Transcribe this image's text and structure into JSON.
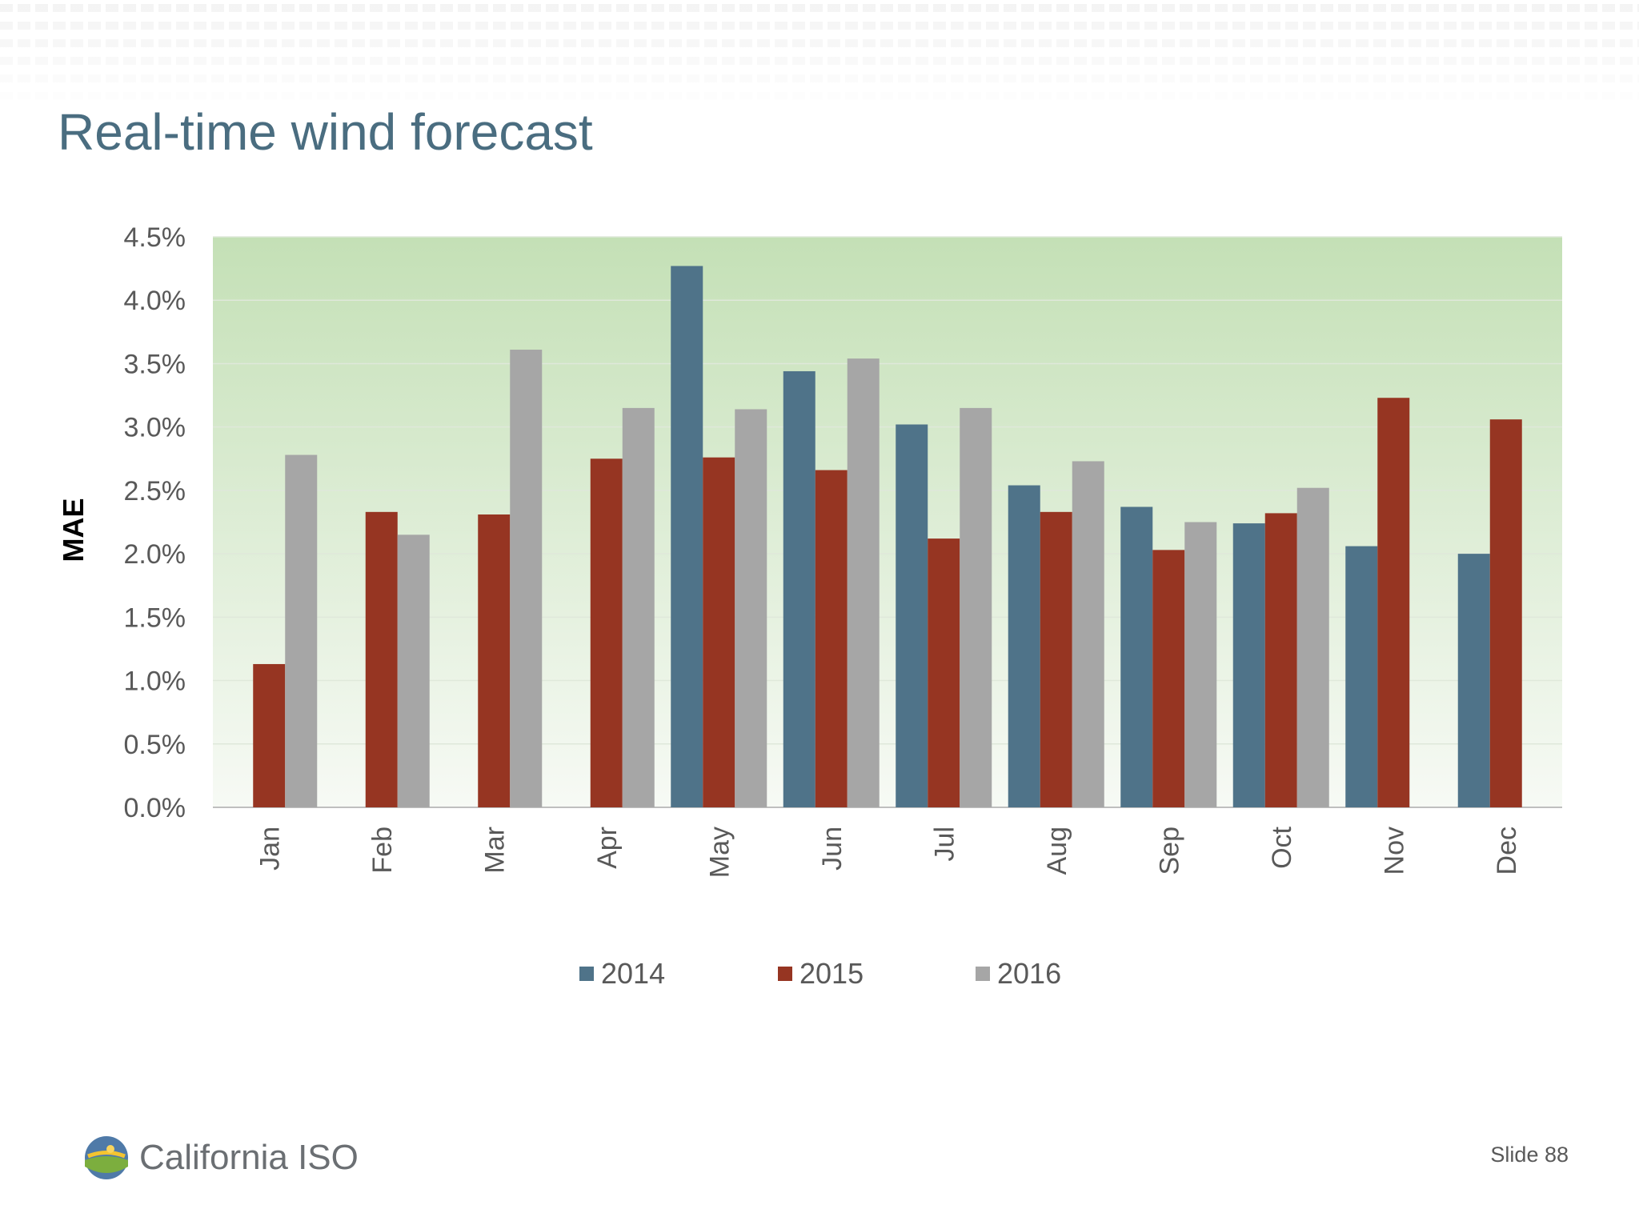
{
  "slide": {
    "title": "Real-time wind forecast",
    "slide_number": "Slide 88",
    "logo_text": "California ISO"
  },
  "colors": {
    "title": "#4a6d80",
    "series_2014": "#4f7389",
    "series_2015": "#963522",
    "series_2016": "#a6a6a6",
    "plot_top": "#c4e0b6",
    "plot_bottom": "#f7faf5"
  },
  "chart_data": {
    "type": "bar",
    "title": "",
    "xlabel": "",
    "ylabel": "MAE",
    "ylim": [
      0,
      4.5
    ],
    "yunit": "%",
    "yticks": [
      "0.0%",
      "0.5%",
      "1.0%",
      "1.5%",
      "2.0%",
      "2.5%",
      "3.0%",
      "3.5%",
      "4.0%",
      "4.5%"
    ],
    "categories": [
      "Jan",
      "Feb",
      "Mar",
      "Apr",
      "May",
      "Jun",
      "Jul",
      "Aug",
      "Sep",
      "Oct",
      "Nov",
      "Dec"
    ],
    "series": [
      {
        "name": "2014",
        "color": "#4f7389",
        "values": [
          null,
          null,
          null,
          null,
          4.27,
          3.44,
          3.02,
          2.54,
          2.37,
          2.24,
          2.06,
          2.0
        ]
      },
      {
        "name": "2015",
        "color": "#963522",
        "values": [
          1.13,
          2.33,
          2.31,
          2.75,
          2.76,
          2.66,
          2.12,
          2.33,
          2.03,
          2.32,
          3.23,
          3.06
        ]
      },
      {
        "name": "2016",
        "color": "#a6a6a6",
        "values": [
          2.78,
          2.15,
          3.61,
          3.15,
          3.14,
          3.54,
          3.15,
          2.73,
          2.25,
          2.52,
          null,
          null
        ]
      }
    ],
    "grid": true,
    "legend": "bottom"
  }
}
